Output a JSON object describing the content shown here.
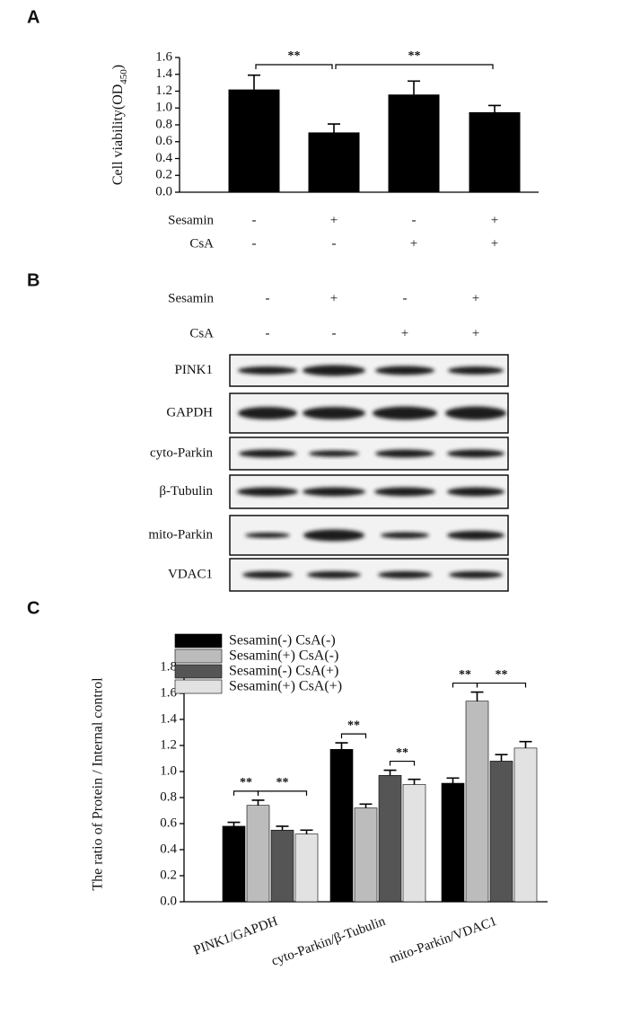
{
  "panel_labels": [
    "A",
    "B",
    "C"
  ],
  "chart_data": [
    {
      "type": "bar",
      "y_label": "Cell viability(OD",
      "y_label_sub": "450",
      "y_label_end": ")",
      "values": [
        1.22,
        0.71,
        1.16,
        0.95
      ],
      "errors": [
        0.17,
        0.1,
        0.16,
        0.08
      ],
      "color": "#000000",
      "ylim": [
        0,
        1.6
      ],
      "yticks": [
        {
          "value": 0,
          "label": "0.0"
        },
        0.2,
        0.4,
        0.6,
        0.8,
        {
          "value": 1,
          "label": "1.0"
        },
        1.2,
        1.4,
        1.6
      ],
      "annotations": [
        {
          "from": 0,
          "to": 1,
          "text": "**"
        },
        {
          "from": 1,
          "to": 3,
          "text": "**"
        }
      ],
      "conditions": [
        {
          "label": "Sesamin",
          "signs": [
            "-",
            "+",
            "-",
            "+"
          ]
        },
        {
          "label": "CsA",
          "signs": [
            "-",
            "-",
            "+",
            "+"
          ]
        }
      ]
    },
    {
      "type": "grouped_bar",
      "y_label": "The ratio of Protein / Internal control",
      "categories": [
        "PINK1/GAPDH",
        "cyto-Parkin/β-Tubulin",
        "mito-Parkin/VDAC1"
      ],
      "series": [
        {
          "name": "Sesamin(-) CsA(-)",
          "color": "#000000",
          "values": [
            0.58,
            1.17,
            0.91
          ],
          "errors": [
            0.03,
            0.05,
            0.04
          ]
        },
        {
          "name": "Sesamin(+) CsA(-)",
          "color": "#bcbcbc",
          "values": [
            0.74,
            0.72,
            1.54
          ],
          "errors": [
            0.04,
            0.03,
            0.07
          ]
        },
        {
          "name": "Sesamin(-) CsA(+)",
          "color": "#555555",
          "values": [
            0.55,
            0.97,
            1.08
          ],
          "errors": [
            0.03,
            0.04,
            0.05
          ]
        },
        {
          "name": "Sesamin(+) CsA(+)",
          "color": "#e2e2e2",
          "values": [
            0.52,
            0.9,
            1.18
          ],
          "errors": [
            0.03,
            0.04,
            0.05
          ]
        }
      ],
      "ylim": [
        0,
        1.8
      ],
      "yticks": [
        {
          "value": 0,
          "label": "0.0"
        },
        0.2,
        0.4,
        0.6,
        0.8,
        {
          "value": 1,
          "label": "1.0"
        },
        1.2,
        1.4,
        1.6,
        1.8
      ],
      "annotations": [
        {
          "group": 0,
          "from": 0,
          "to": 1,
          "text": "**"
        },
        {
          "group": 0,
          "from": 1,
          "to": 3,
          "text": "**"
        },
        {
          "group": 1,
          "from": 0,
          "to": 1,
          "text": "**"
        },
        {
          "group": 1,
          "from": 2,
          "to": 3,
          "text": "**"
        },
        {
          "group": 2,
          "from": 0,
          "to": 1,
          "text": "**"
        },
        {
          "group": 2,
          "from": 1,
          "to": 3,
          "text": "**"
        }
      ]
    }
  ],
  "blot": {
    "conditions": [
      {
        "label": "Sesamin",
        "signs": [
          "-",
          "+",
          "-",
          "+"
        ]
      },
      {
        "label": "CsA",
        "signs": [
          "-",
          "-",
          "+",
          "+"
        ]
      }
    ],
    "rows": [
      "PINK1",
      "GAPDH",
      "cyto-Parkin",
      "β-Tubulin",
      "mito-Parkin",
      "VDAC1"
    ]
  }
}
